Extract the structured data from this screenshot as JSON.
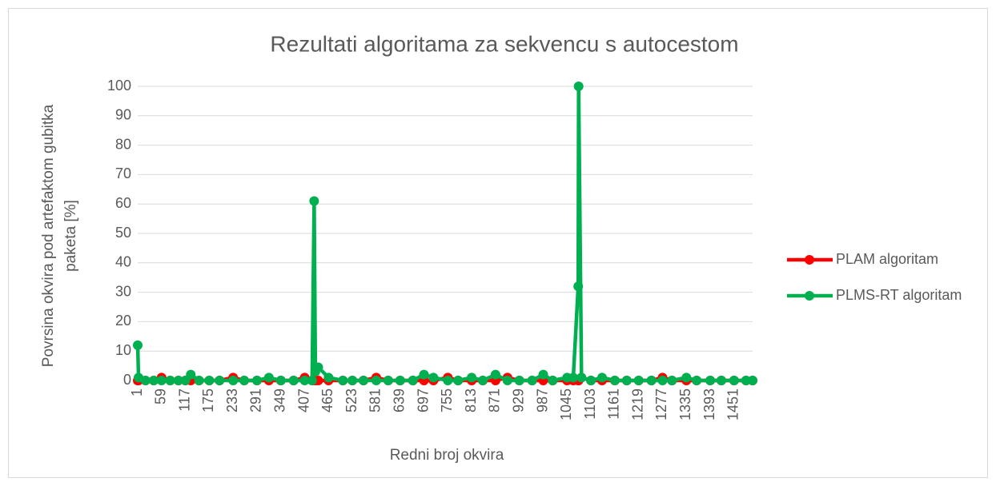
{
  "chart_data": {
    "type": "line",
    "title": "Rezultati algoritama za sekvencu s autocestom",
    "x_label": "Redni broj okvira",
    "y_label": "Povrsina okvira pod artefaktom gubitka paketa [%]",
    "x": [
      1,
      3,
      20,
      40,
      59,
      80,
      100,
      117,
      130,
      150,
      175,
      200,
      233,
      260,
      291,
      320,
      349,
      380,
      407,
      425,
      430,
      433,
      440,
      465,
      500,
      523,
      550,
      581,
      610,
      639,
      670,
      697,
      720,
      755,
      780,
      813,
      840,
      871,
      900,
      929,
      960,
      987,
      1010,
      1045,
      1060,
      1072,
      1073,
      1080,
      1103,
      1130,
      1161,
      1190,
      1219,
      1250,
      1277,
      1300,
      1335,
      1360,
      1393,
      1420,
      1451,
      1480,
      1496
    ],
    "series": [
      {
        "name": "PLAM algoritam",
        "color": "#ff0000",
        "values": [
          0,
          0,
          0,
          0,
          1,
          0,
          0,
          0,
          0,
          0,
          0,
          0,
          1,
          0,
          0,
          0,
          0,
          0,
          1,
          0,
          0,
          0,
          0,
          0,
          0,
          0,
          0,
          1,
          0,
          0,
          0,
          0,
          0,
          1,
          0,
          0,
          0,
          0,
          1,
          0,
          0,
          0,
          0,
          0,
          0,
          0,
          0,
          1,
          0,
          0,
          0,
          0,
          0,
          0,
          1,
          0,
          0,
          0,
          0,
          0,
          0,
          0,
          0
        ]
      },
      {
        "name": "PLMS-RT algoritam",
        "color": "#00b050",
        "values": [
          12,
          1,
          0,
          0,
          0,
          0,
          0,
          0,
          2,
          0,
          0,
          0,
          0,
          0,
          0,
          1,
          0,
          0,
          0,
          0,
          61,
          3,
          4.5,
          1,
          0,
          0,
          0,
          0,
          0,
          0,
          0,
          2,
          1,
          0,
          0,
          1,
          0,
          2,
          0,
          0,
          0,
          2,
          0,
          1,
          1,
          32,
          100,
          1,
          0,
          1,
          0,
          0,
          0,
          0,
          0,
          0,
          1,
          0,
          0,
          0,
          0,
          0,
          0
        ]
      }
    ],
    "xlim": [
      1,
      1496
    ],
    "xticks": [
      1,
      59,
      117,
      175,
      233,
      291,
      349,
      407,
      465,
      523,
      581,
      639,
      697,
      755,
      813,
      871,
      929,
      987,
      1045,
      1103,
      1161,
      1219,
      1277,
      1335,
      1393,
      1451
    ],
    "ylim": [
      0,
      100
    ],
    "yticks": [
      0,
      10,
      20,
      30,
      40,
      50,
      60,
      70,
      80,
      90,
      100
    ],
    "grid": true,
    "legend": "right"
  }
}
